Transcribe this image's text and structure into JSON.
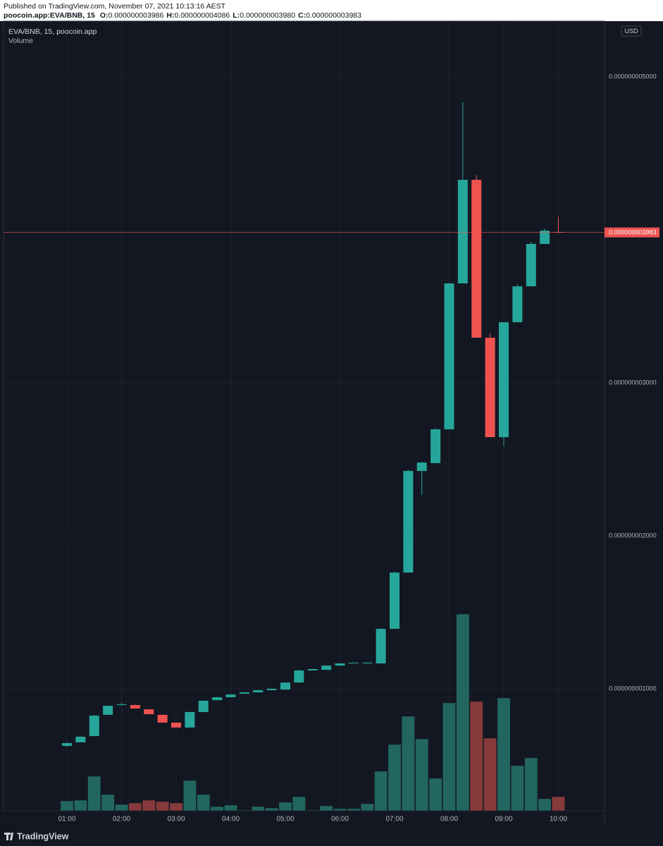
{
  "header": {
    "published": "Published on TradingView.com, November 07, 2021 10:13:16 AEST",
    "symbol": "poocoin.app:EVA/BNB, 15",
    "ohlc": [
      {
        "key": "O:",
        "label": "0.000000003986"
      },
      {
        "key": "H:",
        "label": "0.000000004086"
      },
      {
        "key": "L:",
        "label": "0.000000003980"
      },
      {
        "key": "C:",
        "label": "0.000000003983"
      }
    ]
  },
  "chart_data": {
    "type": "candlestick",
    "title": "EVA/BNB, 15, poocoin.app",
    "volume_title": "Volume",
    "currency": "USD",
    "categories": [
      "01:00",
      null,
      null,
      null,
      "02:00",
      null,
      null,
      null,
      "03:00",
      null,
      null,
      null,
      "04:00",
      null,
      null,
      null,
      "05:00",
      null,
      null,
      null,
      "06:00",
      null,
      null,
      null,
      "07:00",
      null,
      null,
      null,
      "08:00",
      null,
      null,
      null,
      "09:00",
      null,
      null,
      null,
      "10:00"
    ],
    "open": [
      6.27e-10,
      6.5e-10,
      6.91e-10,
      8.3e-10,
      8.94e-10,
      8.94e-10,
      8.66e-10,
      8.3e-10,
      7.79e-10,
      7.47e-10,
      8.48e-10,
      9.26e-10,
      9.45e-10,
      9.68e-10,
      9.77e-10,
      9.91e-10,
      9.95e-10,
      1.041e-09,
      1.12e-09,
      1.124e-09,
      1.152e-09,
      1.166e-09,
      1.166e-09,
      1.166e-09,
      1.392e-09,
      1.76e-09,
      2.424e-09,
      2.475e-09,
      2.696e-09,
      3.65e-09,
      4.327e-09,
      3.295e-09,
      2.645e-09,
      3.396e-09,
      3.631e-09,
      3.908e-09,
      3.986e-09
    ],
    "high": [
      6.5e-10,
      6.9e-10,
      8.3e-10,
      8.92e-10,
      9.08e-10,
      8.96e-10,
      8.66e-10,
      8.3e-10,
      7.79e-10,
      8.52e-10,
      9.25e-10,
      9.47e-10,
      9.65e-10,
      9.77e-10,
      9.93e-10,
      1.002e-09,
      1.041e-09,
      1.124e-09,
      1.131e-09,
      1.152e-09,
      1.168e-09,
      1.173e-09,
      1.173e-09,
      1.397e-09,
      1.765e-09,
      2.433e-09,
      2.484e-09,
      2.705e-09,
      3.65e-09,
      4.834e-09,
      4.359e-09,
      3.327e-09,
      3.396e-09,
      3.645e-09,
      3.922e-09,
      4.009e-09,
      4.086e-09
    ],
    "low": [
      6.2e-10,
      6.5e-10,
      6.91e-10,
      8.3e-10,
      8.9e-10,
      8.71e-10,
      8.34e-10,
      7.79e-10,
      7.47e-10,
      7.47e-10,
      8.48e-10,
      9.26e-10,
      9.45e-10,
      9.68e-10,
      9.77e-10,
      9.91e-10,
      9.95e-10,
      1.041e-09,
      1.12e-09,
      1.124e-09,
      1.152e-09,
      1.166e-09,
      1.166e-09,
      1.166e-09,
      1.392e-09,
      1.76e-09,
      2.267e-09,
      2.475e-09,
      2.696e-09,
      3.65e-09,
      3.295e-09,
      2.645e-09,
      2.585e-09,
      3.396e-09,
      3.631e-09,
      3.908e-09,
      3.98e-09
    ],
    "close": [
      6.45e-10,
      6.87e-10,
      8.25e-10,
      8.89e-10,
      8.99e-10,
      8.71e-10,
      8.34e-10,
      7.79e-10,
      7.47e-10,
      8.48e-10,
      9.22e-10,
      9.45e-10,
      9.63e-10,
      9.77e-10,
      9.91e-10,
      1e-09,
      1.041e-09,
      1.12e-09,
      1.129e-09,
      1.152e-09,
      1.166e-09,
      1.171e-09,
      1.171e-09,
      1.392e-09,
      1.76e-09,
      2.424e-09,
      2.479e-09,
      2.696e-09,
      3.65e-09,
      4.327e-09,
      3.295e-09,
      2.645e-09,
      3.396e-09,
      3.631e-09,
      3.908e-09,
      3.995e-09,
      3.983e-09
    ],
    "volume": [
      14,
      15,
      49,
      23,
      9,
      11,
      15,
      13,
      11,
      43,
      23,
      6,
      8,
      1,
      6,
      4,
      12,
      20,
      1,
      7,
      3,
      3,
      10,
      56,
      94,
      134,
      102,
      46,
      153,
      279,
      155,
      103,
      160,
      64,
      75,
      17,
      20
    ],
    "up_color": "#26a69a",
    "down_color": "#ef5350",
    "volume_up_color": "#22665f",
    "volume_down_color": "#873a3b",
    "ylim": [
      2.03e-10,
      5.364e-09
    ],
    "yticks": [
      {
        "value": 1e-09,
        "label": "0.000000001000"
      },
      {
        "value": 2e-09,
        "label": "0.000000002000"
      },
      {
        "value": 3e-09,
        "label": "0.000000003000"
      },
      {
        "value": 5e-09,
        "label": "0.000000005000"
      }
    ],
    "grid": true
  },
  "footer": {
    "brand": "TradingView"
  }
}
